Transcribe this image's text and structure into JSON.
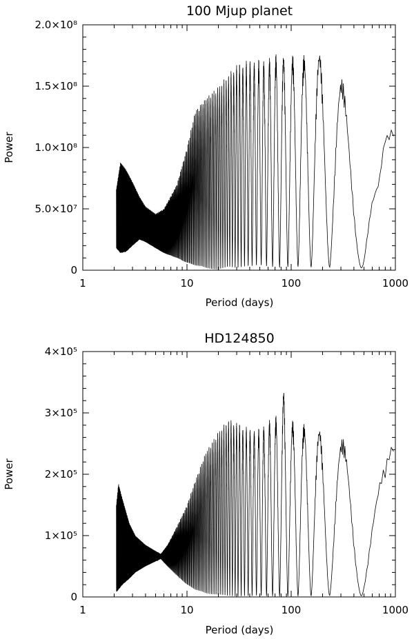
{
  "chart_data": [
    {
      "type": "line",
      "title": "100 Mjup planet",
      "xlabel": "Period (days)",
      "ylabel": "Power",
      "xscale": "log",
      "xlim": [
        1,
        1000
      ],
      "ylim": [
        0,
        200000000
      ],
      "xtick_labels": [
        "1",
        "10",
        "100",
        "1000"
      ],
      "xtick_values": [
        1,
        10,
        100,
        1000
      ],
      "ytick_labels": [
        "0",
        "5.0×10⁷",
        "1.0×10⁸",
        "1.5×10⁸",
        "2.0×10⁸"
      ],
      "ytick_values": [
        0,
        50000000,
        100000000,
        150000000,
        200000000
      ],
      "grid": false,
      "line_color": "#000000",
      "envelope": {
        "period": [
          2.1,
          2.3,
          2.6,
          3.0,
          3.5,
          4.0,
          5.0,
          6.0,
          8.0,
          10,
          12,
          15,
          20,
          25,
          30,
          40,
          50,
          60,
          80,
          100,
          150,
          200,
          230,
          300,
          350,
          400,
          500,
          600,
          700,
          800,
          900,
          960
        ],
        "upper": [
          66000000,
          88000000,
          82000000,
          72000000,
          60000000,
          52000000,
          46000000,
          50000000,
          70000000,
          100000000,
          130000000,
          140000000,
          150000000,
          160000000,
          168000000,
          172000000,
          172000000,
          174000000,
          178000000,
          176000000,
          176000000,
          180000000,
          182000000,
          160000000,
          140000000,
          130000000,
          110000000,
          100000000,
          95000000,
          110000000,
          115000000,
          115000000
        ],
        "lower": [
          18000000,
          14000000,
          15000000,
          20000000,
          25000000,
          23000000,
          18000000,
          14000000,
          10000000,
          6000000,
          4000000,
          2000000,
          0,
          3000000,
          2000000,
          3000000,
          4000000,
          3000000,
          2000000,
          3000000,
          2000000,
          3000000,
          2000000,
          1000000,
          2000000,
          3000000,
          1000000,
          20000000,
          5000000,
          80000000,
          40000000,
          30000000
        ]
      }
    },
    {
      "type": "line",
      "title": "HD124850",
      "xlabel": "Period (days)",
      "ylabel": "Power",
      "xscale": "log",
      "xlim": [
        1,
        1000
      ],
      "ylim": [
        0,
        400000
      ],
      "xtick_labels": [
        "1",
        "10",
        "100",
        "1000"
      ],
      "xtick_values": [
        1,
        10,
        100,
        1000
      ],
      "ytick_labels": [
        "0",
        "1×10⁵",
        "2×10⁵",
        "3×10⁵",
        "4×10⁵"
      ],
      "ytick_values": [
        0,
        100000,
        200000,
        300000,
        400000
      ],
      "grid": false,
      "line_color": "#000000",
      "envelope": {
        "period": [
          2.1,
          2.2,
          2.4,
          2.8,
          3.2,
          4.0,
          5.0,
          5.6,
          6.5,
          8.0,
          10,
          12,
          15,
          20,
          25,
          30,
          40,
          50,
          60,
          80,
          85,
          100,
          150,
          200,
          300,
          400,
          500,
          600,
          700,
          800,
          900,
          960
        ],
        "upper": [
          150000,
          185000,
          160000,
          120000,
          100000,
          85000,
          75000,
          70000,
          85000,
          115000,
          150000,
          190000,
          235000,
          270000,
          290000,
          285000,
          275000,
          275000,
          290000,
          300000,
          345000,
          290000,
          280000,
          275000,
          260000,
          250000,
          240000,
          245000,
          240000,
          225000,
          245000,
          245000
        ],
        "lower": [
          8000,
          12000,
          20000,
          30000,
          40000,
          50000,
          58000,
          62000,
          50000,
          35000,
          20000,
          12000,
          6000,
          3000,
          2000,
          1000,
          1000,
          2000,
          1000,
          1000,
          1000,
          1000,
          1000,
          2000,
          1000,
          1000,
          1000,
          3000,
          1000,
          50000,
          120000,
          130000
        ]
      }
    }
  ]
}
